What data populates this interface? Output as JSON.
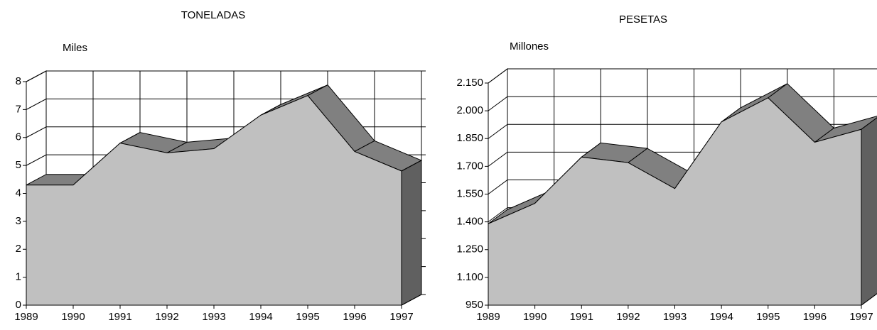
{
  "chart_data": [
    {
      "type": "area3d",
      "title": "TONELADAS",
      "y_label": "Miles",
      "categories": [
        "1989",
        "1990",
        "1991",
        "1992",
        "1993",
        "1994",
        "1995",
        "1996",
        "1997"
      ],
      "values": [
        4.3,
        4.3,
        5.8,
        5.45,
        5.6,
        6.8,
        7.5,
        5.5,
        4.8
      ],
      "color": "#c0c0c0",
      "ylim": [
        0,
        8
      ],
      "yticks": [
        0,
        1,
        2,
        3,
        4,
        5,
        6,
        7,
        8
      ],
      "grid": true
    },
    {
      "type": "area3d",
      "title": "PESETAS",
      "y_label": "Millones",
      "categories": [
        "1989",
        "1990",
        "1991",
        "1992",
        "1993",
        "1994",
        "1995",
        "1996",
        "1997"
      ],
      "values": [
        1390,
        1500,
        1750,
        1720,
        1580,
        1940,
        2070,
        1830,
        1900
      ],
      "color": "#c0c0c0",
      "ylim": [
        950,
        2150
      ],
      "yticks": [
        950,
        {
          "value": 1100,
          "label": "1.100"
        },
        {
          "value": 1250,
          "label": "1.250"
        },
        {
          "value": 1400,
          "label": "1.400"
        },
        {
          "value": 1550,
          "label": "1.550"
        },
        {
          "value": 1700,
          "label": "1.700"
        },
        {
          "value": 1850,
          "label": "1.850"
        },
        {
          "value": 2000,
          "label": "2.000"
        },
        {
          "value": 2150,
          "label": "2.150"
        }
      ],
      "grid": true
    }
  ]
}
